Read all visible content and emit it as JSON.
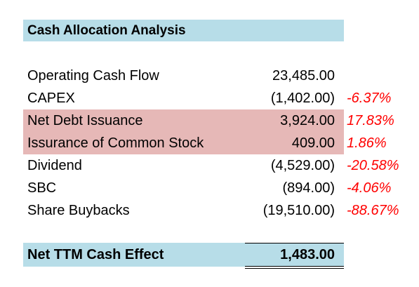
{
  "title": "Cash Allocation Analysis",
  "rows": [
    {
      "label": "Operating Cash Flow",
      "value": "23,485.00",
      "pct": ""
    },
    {
      "label": "CAPEX",
      "value": "(1,402.00)",
      "pct": "-6.37%"
    },
    {
      "label": "Net Debt Issuance",
      "value": "3,924.00",
      "pct": "17.83%"
    },
    {
      "label": "Issurance of Common Stock",
      "value": "409.00",
      "pct": "1.86%"
    },
    {
      "label": "Dividend",
      "value": "(4,529.00)",
      "pct": "-20.58%"
    },
    {
      "label": "SBC",
      "value": "(894.00)",
      "pct": "-4.06%"
    },
    {
      "label": "Share Buybacks",
      "value": "(19,510.00)",
      "pct": "-88.67%"
    }
  ],
  "total": {
    "label": "Net TTM Cash Effect",
    "value": "1,483.00"
  },
  "colors": {
    "header_fill": "#b7dde8",
    "highlight_fill": "#e6b8b7",
    "percent_text": "#ff0000"
  }
}
